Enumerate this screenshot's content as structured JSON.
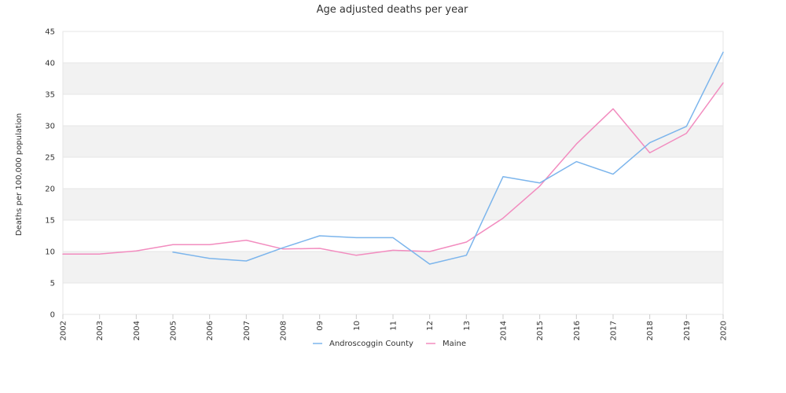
{
  "chart_data": {
    "type": "line",
    "title": "Age adjusted deaths per year",
    "ylabel": "Deaths per 100,000 population",
    "xlabel": "",
    "ylim": [
      0,
      45
    ],
    "y_ticks": [
      0,
      5,
      10,
      15,
      20,
      25,
      30,
      35,
      40,
      45
    ],
    "categories": [
      "2002",
      "2003",
      "2004",
      "2005",
      "2006",
      "2007",
      "2008",
      "09",
      "10",
      "11",
      "12",
      "13",
      "2014",
      "2015",
      "2016",
      "2017",
      "2018",
      "2019",
      "2020"
    ],
    "grid": "horizontal alternating bands",
    "legend_position": "bottom-center",
    "series": [
      {
        "name": "Androscoggin County",
        "color": "#7cb5ec",
        "values": [
          null,
          null,
          null,
          9.9,
          8.9,
          8.5,
          10.6,
          12.5,
          12.2,
          12.2,
          8.0,
          9.4,
          21.9,
          20.9,
          24.3,
          22.3,
          27.3,
          29.9,
          41.7
        ]
      },
      {
        "name": "Maine",
        "color": "#f28cbf",
        "values": [
          9.6,
          9.6,
          10.1,
          11.1,
          11.1,
          11.8,
          10.4,
          10.5,
          9.4,
          10.2,
          10.0,
          11.5,
          15.3,
          20.4,
          27.1,
          32.7,
          25.7,
          28.8,
          36.8
        ]
      }
    ]
  }
}
